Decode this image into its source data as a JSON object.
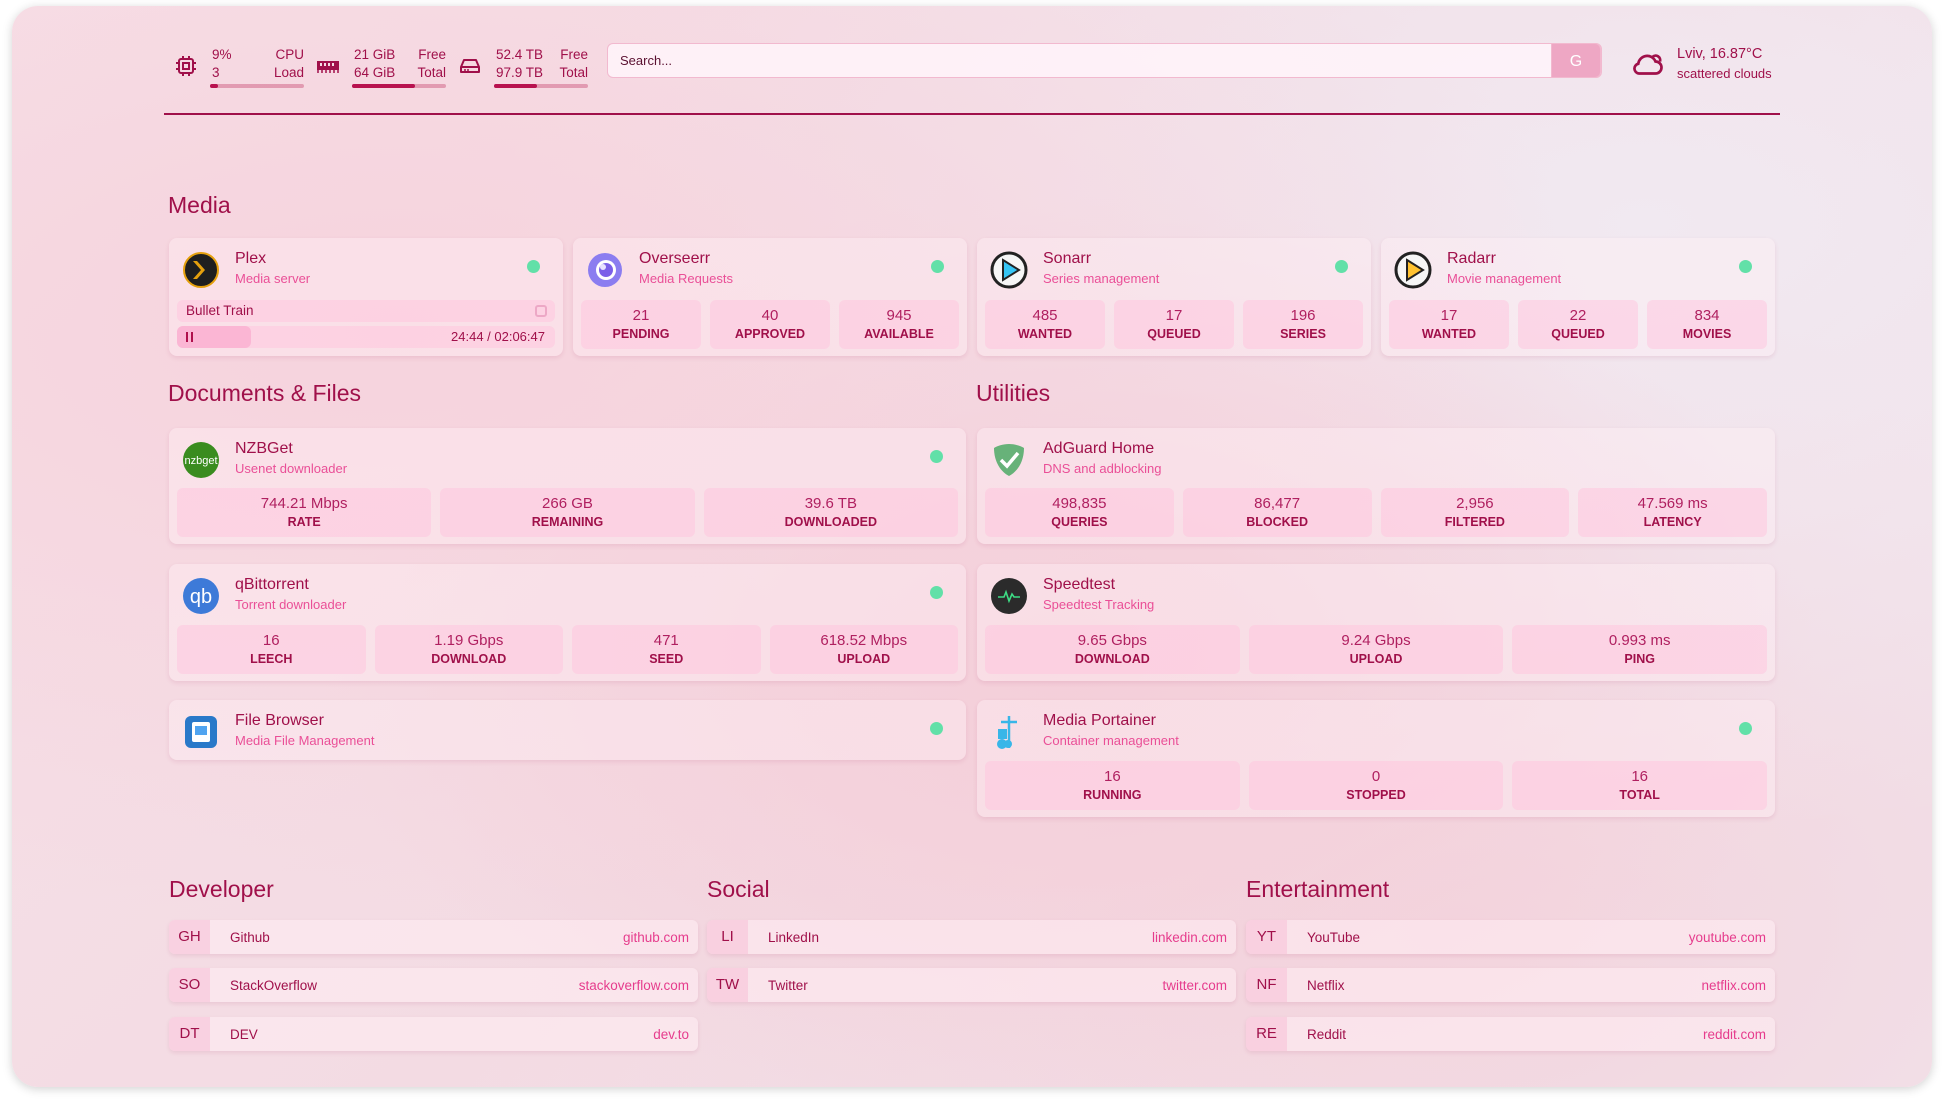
{
  "header": {
    "cpu": {
      "value": "9%",
      "sub": "3",
      "label1": "CPU",
      "label2": "Load",
      "fill": 0.09,
      "icon": "cpu-icon"
    },
    "memory": {
      "value": "21 GiB",
      "sub": "64 GiB",
      "label1": "Free",
      "label2": "Total",
      "fill": 0.67,
      "icon": "memory-icon"
    },
    "disk": {
      "value": "52.4 TB",
      "sub": "97.9 TB",
      "label1": "Free",
      "label2": "Total",
      "fill": 0.46,
      "icon": "disk-icon"
    },
    "search": {
      "placeholder": "Search...",
      "button": "G"
    },
    "weather": {
      "location": "Lviv, 16.87°C",
      "condition": "scattered clouds",
      "icon": "cloud-sun-icon"
    }
  },
  "colors": {
    "text": "#a0104a",
    "subtitle": "#ea4f97",
    "status_online": "#62e0a8",
    "accent": "#eea7c4"
  },
  "sections": {
    "media": {
      "title": "Media",
      "services": [
        {
          "name": "Plex",
          "desc": "Media server",
          "icon": "plex-icon",
          "online": true,
          "now_playing": {
            "title": "Bullet Train",
            "time": "24:44 / 02:06:47",
            "progress": 0.195
          }
        },
        {
          "name": "Overseerr",
          "desc": "Media Requests",
          "icon": "overseerr-icon",
          "online": true,
          "stats": [
            {
              "value": "21",
              "label": "PENDING"
            },
            {
              "value": "40",
              "label": "APPROVED"
            },
            {
              "value": "945",
              "label": "AVAILABLE"
            }
          ]
        },
        {
          "name": "Sonarr",
          "desc": "Series management",
          "icon": "sonarr-icon",
          "online": true,
          "stats": [
            {
              "value": "485",
              "label": "WANTED"
            },
            {
              "value": "17",
              "label": "QUEUED"
            },
            {
              "value": "196",
              "label": "SERIES"
            }
          ]
        },
        {
          "name": "Radarr",
          "desc": "Movie management",
          "icon": "radarr-icon",
          "online": true,
          "stats": [
            {
              "value": "17",
              "label": "WANTED"
            },
            {
              "value": "22",
              "label": "QUEUED"
            },
            {
              "value": "834",
              "label": "MOVIES"
            }
          ]
        }
      ]
    },
    "docs": {
      "title": "Documents & Files",
      "services": [
        {
          "name": "NZBGet",
          "desc": "Usenet downloader",
          "icon": "nzbget-icon",
          "online": true,
          "stats": [
            {
              "value": "744.21 Mbps",
              "label": "RATE"
            },
            {
              "value": "266 GB",
              "label": "REMAINING"
            },
            {
              "value": "39.6 TB",
              "label": "DOWNLOADED"
            }
          ]
        },
        {
          "name": "qBittorrent",
          "desc": "Torrent downloader",
          "icon": "qbittorrent-icon",
          "online": true,
          "stats": [
            {
              "value": "16",
              "label": "LEECH"
            },
            {
              "value": "1.19 Gbps",
              "label": "DOWNLOAD"
            },
            {
              "value": "471",
              "label": "SEED"
            },
            {
              "value": "618.52 Mbps",
              "label": "UPLOAD"
            }
          ]
        },
        {
          "name": "File Browser",
          "desc": "Media File Management",
          "icon": "filebrowser-icon",
          "online": true
        }
      ]
    },
    "utilities": {
      "title": "Utilities",
      "services": [
        {
          "name": "AdGuard Home",
          "desc": "DNS and adblocking",
          "icon": "adguard-icon",
          "online": false,
          "stats": [
            {
              "value": "498,835",
              "label": "QUERIES"
            },
            {
              "value": "86,477",
              "label": "BLOCKED"
            },
            {
              "value": "2,956",
              "label": "FILTERED"
            },
            {
              "value": "47.569 ms",
              "label": "LATENCY"
            }
          ]
        },
        {
          "name": "Speedtest",
          "desc": "Speedtest Tracking",
          "icon": "speedtest-icon",
          "online": false,
          "stats": [
            {
              "value": "9.65 Gbps",
              "label": "DOWNLOAD"
            },
            {
              "value": "9.24 Gbps",
              "label": "UPLOAD"
            },
            {
              "value": "0.993 ms",
              "label": "PING"
            }
          ]
        },
        {
          "name": "Media Portainer",
          "desc": "Container management",
          "icon": "portainer-icon",
          "online": true,
          "stats": [
            {
              "value": "16",
              "label": "RUNNING"
            },
            {
              "value": "0",
              "label": "STOPPED"
            },
            {
              "value": "16",
              "label": "TOTAL"
            }
          ]
        }
      ]
    }
  },
  "bookmarks": [
    {
      "title": "Developer",
      "items": [
        {
          "abbr": "GH",
          "name": "Github",
          "url": "github.com"
        },
        {
          "abbr": "SO",
          "name": "StackOverflow",
          "url": "stackoverflow.com"
        },
        {
          "abbr": "DT",
          "name": "DEV",
          "url": "dev.to"
        }
      ]
    },
    {
      "title": "Social",
      "items": [
        {
          "abbr": "LI",
          "name": "LinkedIn",
          "url": "linkedin.com"
        },
        {
          "abbr": "TW",
          "name": "Twitter",
          "url": "twitter.com"
        }
      ]
    },
    {
      "title": "Entertainment",
      "items": [
        {
          "abbr": "YT",
          "name": "YouTube",
          "url": "youtube.com"
        },
        {
          "abbr": "NF",
          "name": "Netflix",
          "url": "netflix.com"
        },
        {
          "abbr": "RE",
          "name": "Reddit",
          "url": "reddit.com"
        }
      ]
    }
  ]
}
